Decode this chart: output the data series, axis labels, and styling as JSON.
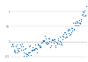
{
  "years": [
    1880,
    1881,
    1882,
    1883,
    1884,
    1885,
    1886,
    1887,
    1888,
    1889,
    1890,
    1891,
    1892,
    1893,
    1894,
    1895,
    1896,
    1897,
    1898,
    1899,
    1900,
    1901,
    1902,
    1903,
    1904,
    1905,
    1906,
    1907,
    1908,
    1909,
    1910,
    1911,
    1912,
    1913,
    1914,
    1915,
    1916,
    1917,
    1918,
    1919,
    1920,
    1921,
    1922,
    1923,
    1924,
    1925,
    1926,
    1927,
    1928,
    1929,
    1930,
    1931,
    1932,
    1933,
    1934,
    1935,
    1936,
    1937,
    1938,
    1939,
    1940,
    1941,
    1942,
    1943,
    1944,
    1945,
    1946,
    1947,
    1948,
    1949,
    1950,
    1951,
    1952,
    1953,
    1954,
    1955,
    1956,
    1957,
    1958,
    1959,
    1960,
    1961,
    1962,
    1963,
    1964,
    1965,
    1966,
    1967,
    1968,
    1969,
    1970,
    1971,
    1972,
    1973,
    1974,
    1975,
    1976,
    1977,
    1978,
    1979,
    1980,
    1981,
    1982,
    1983,
    1984,
    1985,
    1986,
    1987,
    1988,
    1989,
    1990,
    1991,
    1992,
    1993,
    1994,
    1995,
    1996,
    1997,
    1998,
    1999,
    2000,
    2001,
    2002,
    2003,
    2004,
    2005,
    2006,
    2007,
    2008,
    2009,
    2010,
    2011,
    2012,
    2013,
    2014,
    2015,
    2016,
    2017,
    2018,
    2019,
    2020,
    2021,
    2022,
    2023
  ],
  "anomalies": [
    -0.16,
    -0.08,
    -0.11,
    -0.17,
    -0.28,
    -0.33,
    -0.31,
    -0.35,
    -0.17,
    -0.1,
    -0.35,
    -0.22,
    -0.27,
    -0.31,
    -0.32,
    -0.23,
    -0.11,
    -0.11,
    -0.27,
    -0.17,
    -0.08,
    -0.15,
    -0.28,
    -0.37,
    -0.47,
    -0.26,
    -0.22,
    -0.39,
    -0.43,
    -0.48,
    -0.43,
    -0.44,
    -0.36,
    -0.35,
    -0.15,
    -0.14,
    -0.36,
    -0.46,
    -0.3,
    -0.27,
    -0.27,
    -0.19,
    -0.28,
    -0.26,
    -0.27,
    -0.22,
    -0.1,
    -0.21,
    -0.25,
    -0.36,
    -0.09,
    -0.08,
    -0.12,
    -0.18,
    -0.13,
    -0.2,
    -0.15,
    -0.03,
    -0.02,
    -0.01,
    0.03,
    0.05,
    0.03,
    0.05,
    0.2,
    0.1,
    -0.04,
    -0.01,
    -0.06,
    -0.07,
    -0.03,
    0.09,
    0.02,
    0.09,
    -0.2,
    -0.01,
    -0.14,
    0.05,
    0.07,
    0.05,
    -0.03,
    0.06,
    0.03,
    0.06,
    -0.2,
    -0.12,
    -0.01,
    -0.03,
    -0.07,
    0.09,
    0.04,
    -0.08,
    0.01,
    0.16,
    -0.07,
    -0.01,
    -0.1,
    0.18,
    0.07,
    0.16,
    0.26,
    0.32,
    0.14,
    0.31,
    0.16,
    0.26,
    0.15,
    0.35,
    0.4,
    0.27,
    0.43,
    0.4,
    0.22,
    0.24,
    0.31,
    0.45,
    0.35,
    0.46,
    0.63,
    0.4,
    0.42,
    0.54,
    0.63,
    0.62,
    0.54,
    0.68,
    0.64,
    0.66,
    0.54,
    0.64,
    0.72,
    0.61,
    0.64,
    0.68,
    0.75,
    0.9,
    1.01,
    0.92,
    0.85,
    0.98,
    1.02,
    0.85,
    0.89,
    1.17
  ],
  "dot_color": "#1a6faf",
  "bg_color": "#ffffff",
  "grid_color": "#d0d0d0",
  "hline_color": "#bbbbbb",
  "xlim": [
    1878,
    2025
  ],
  "ylim": [
    -0.62,
    1.32
  ],
  "dot_size": 0.8,
  "yticks": [
    -0.5,
    0.0,
    0.5,
    1.0
  ],
  "ytick_labels": [
    "-0.5",
    "0",
    "0.5",
    "1"
  ],
  "tick_fontsize": 2.0
}
